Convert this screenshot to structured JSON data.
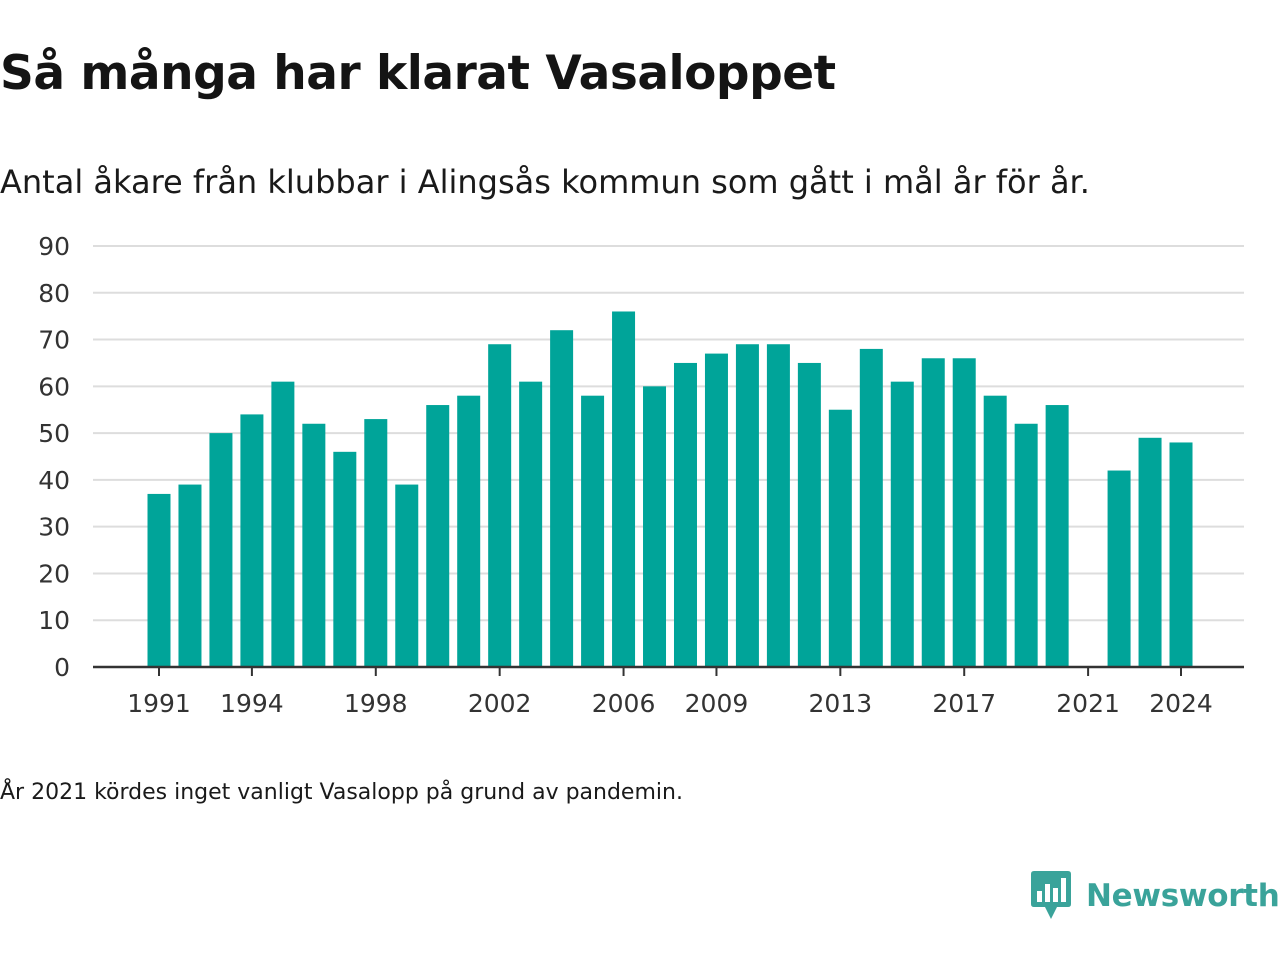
{
  "header": {
    "title": "Så många har klarat Vasaloppet",
    "subtitle": "Antal åkare från klubbar i Alingsås kommun som gått i mål år för år."
  },
  "footnote": "År 2021 kördes inget vanligt Vasalopp på grund av pandemin.",
  "brand": {
    "name": "Newsworthy",
    "icon": "newsworthy-logo-icon",
    "color": "#3aa39a"
  },
  "colors": {
    "bar": "#00a499",
    "grid": "#dddddd",
    "axis": "#333333"
  },
  "chart_data": {
    "type": "bar",
    "title": "Så många har klarat Vasaloppet",
    "xlabel": "",
    "ylabel": "",
    "ylim": [
      0,
      90
    ],
    "yticks": [
      0,
      10,
      20,
      30,
      40,
      50,
      60,
      70,
      80,
      90
    ],
    "xtick_labels": [
      "1991",
      "1994",
      "1998",
      "2002",
      "2006",
      "2009",
      "2013",
      "2017",
      "2021",
      "2024"
    ],
    "grid": true,
    "categories": [
      1991,
      1992,
      1993,
      1994,
      1995,
      1996,
      1997,
      1998,
      1999,
      2000,
      2001,
      2002,
      2003,
      2004,
      2005,
      2006,
      2007,
      2008,
      2009,
      2010,
      2011,
      2012,
      2013,
      2014,
      2015,
      2016,
      2017,
      2018,
      2019,
      2020,
      2021,
      2022,
      2023,
      2024
    ],
    "values": [
      37,
      39,
      50,
      54,
      61,
      52,
      46,
      53,
      39,
      56,
      58,
      69,
      61,
      72,
      58,
      76,
      60,
      65,
      67,
      69,
      69,
      65,
      55,
      68,
      61,
      66,
      66,
      58,
      52,
      56,
      null,
      42,
      49,
      48
    ]
  }
}
